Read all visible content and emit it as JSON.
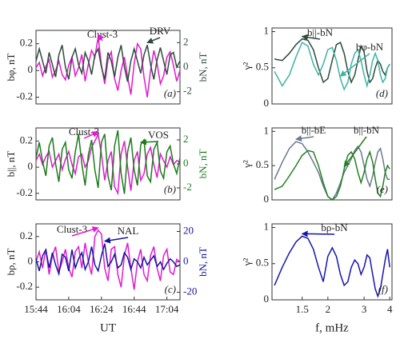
{
  "chart_data": [
    {
      "type": "line",
      "ylabel": "bφ, nT",
      "y2label": "bN, nT",
      "annotation": "(a)",
      "x": [
        "15:44",
        "15:46",
        "15:48",
        "15:50",
        "15:52",
        "15:54",
        "15:56",
        "15:58",
        "16:00",
        "16:02",
        "16:04",
        "16:06",
        "16:08",
        "16:10",
        "16:12",
        "16:14",
        "16:16",
        "16:18",
        "16:20",
        "16:22",
        "16:24",
        "16:26",
        "16:28",
        "16:30",
        "16:32",
        "16:34",
        "16:36",
        "16:38",
        "16:40",
        "16:42",
        "16:44",
        "16:46",
        "16:48",
        "16:50",
        "16:52",
        "16:54",
        "16:56",
        "16:58",
        "17:00",
        "17:02",
        "17:04",
        "17:06",
        "17:08",
        "17:10",
        "17:12"
      ],
      "ylim": [
        -0.25,
        0.3
      ],
      "yticks": [
        -0.2,
        0,
        0.2
      ],
      "y2lim": [
        -3,
        3
      ],
      "y2ticks": [
        -2,
        0,
        2
      ],
      "series": [
        {
          "name": "Clust-3",
          "color": "#e01ad0",
          "values": [
            0.02,
            0.06,
            -0.04,
            0.03,
            0.08,
            -0.05,
            0.0,
            0.07,
            -0.03,
            -0.07,
            0.04,
            0.1,
            -0.04,
            0.02,
            0.12,
            -0.08,
            0.05,
            0.15,
            0.1,
            0.25,
            0.04,
            -0.1,
            0.08,
            0.14,
            -0.06,
            -0.15,
            0.0,
            0.1,
            -0.05,
            -0.18,
            0.05,
            0.2,
            0.16,
            -0.05,
            -0.2,
            0.0,
            0.15,
            0.05,
            -0.1,
            -0.04,
            0.1,
            0.14,
            0.04,
            -0.08,
            0.0
          ]
        },
        {
          "name": "DRV",
          "color": "#2f4a3c",
          "axis": "y2",
          "values": [
            0.5,
            1.5,
            0.5,
            -0.5,
            1.2,
            0.2,
            -0.8,
            1.0,
            1.8,
            0.0,
            -1.0,
            0.8,
            1.5,
            0.2,
            -0.5,
            1.2,
            0.5,
            -0.6,
            1.0,
            1.5,
            0.0,
            -1.0,
            1.2,
            0.5,
            -0.8,
            0.8,
            1.8,
            0.0,
            -1.2,
            0.5,
            1.5,
            0.5,
            -0.5,
            1.0,
            1.8,
            0.2,
            -1.0,
            0.6,
            1.6,
            0.5,
            -0.6,
            1.0,
            1.2,
            0.0,
            0.5
          ]
        }
      ]
    },
    {
      "type": "line",
      "ylabel": "b||, nT",
      "y2label": "bN, nT",
      "annotation": "(b)",
      "x": [
        "15:44",
        "15:46",
        "15:48",
        "15:50",
        "15:52",
        "15:54",
        "15:56",
        "15:58",
        "16:00",
        "16:02",
        "16:04",
        "16:06",
        "16:08",
        "16:10",
        "16:12",
        "16:14",
        "16:16",
        "16:18",
        "16:20",
        "16:22",
        "16:24",
        "16:26",
        "16:28",
        "16:30",
        "16:32",
        "16:34",
        "16:36",
        "16:38",
        "16:40",
        "16:42",
        "16:44",
        "16:46",
        "16:48",
        "16:50",
        "16:52",
        "16:54",
        "16:56",
        "16:58",
        "17:00",
        "17:02",
        "17:04",
        "17:06",
        "17:08",
        "17:10",
        "17:12"
      ],
      "ylim": [
        -0.25,
        0.3
      ],
      "yticks": [
        -0.2,
        0,
        0.2
      ],
      "y2lim": [
        -3,
        3
      ],
      "y2ticks": [
        -2,
        0,
        2
      ],
      "series": [
        {
          "name": "Clust-3",
          "color": "#e01ad0",
          "values": [
            0.05,
            0.1,
            0.02,
            0.08,
            0.12,
            0.0,
            0.05,
            0.1,
            -0.02,
            0.06,
            0.12,
            0.02,
            -0.05,
            0.08,
            0.1,
            0.0,
            0.05,
            0.15,
            0.2,
            0.25,
            0.1,
            -0.1,
            0.05,
            0.12,
            -0.15,
            -0.2,
            0.1,
            0.2,
            0.0,
            -0.18,
            0.05,
            0.12,
            -0.1,
            -0.05,
            0.1,
            0.15,
            0.02,
            -0.08,
            0.1,
            0.05,
            0.0,
            0.08,
            0.02,
            0.05,
            0.04
          ]
        },
        {
          "name": "VOS",
          "color": "#1c7a1c",
          "axis": "y2",
          "values": [
            0.5,
            1.8,
            0.2,
            -1.0,
            1.5,
            2.2,
            0.0,
            -1.5,
            1.2,
            1.8,
            -0.5,
            -1.2,
            1.0,
            2.5,
            0.0,
            -1.8,
            0.8,
            2.0,
            -0.5,
            -2.0,
            1.8,
            2.5,
            -1.0,
            -2.2,
            1.5,
            2.8,
            -0.8,
            -2.5,
            1.0,
            2.2,
            -0.5,
            -1.8,
            1.6,
            2.0,
            -1.0,
            -1.5,
            1.2,
            1.8,
            -0.6,
            -1.2,
            1.0,
            1.5,
            0.0,
            -0.8,
            0.5
          ]
        }
      ]
    },
    {
      "type": "line",
      "ylabel": "bρ, nT",
      "y2label": "bN, nT",
      "annotation": "(c)",
      "xlabel": "UT",
      "x": [
        "15:44",
        "15:46",
        "15:48",
        "15:50",
        "15:52",
        "15:54",
        "15:56",
        "15:58",
        "16:00",
        "16:02",
        "16:04",
        "16:06",
        "16:08",
        "16:10",
        "16:12",
        "16:14",
        "16:16",
        "16:18",
        "16:20",
        "16:22",
        "16:24",
        "16:26",
        "16:28",
        "16:30",
        "16:32",
        "16:34",
        "16:36",
        "16:38",
        "16:40",
        "16:42",
        "16:44",
        "16:46",
        "16:48",
        "16:50",
        "16:52",
        "16:54",
        "16:56",
        "16:58",
        "17:00",
        "17:02",
        "17:04",
        "17:06",
        "17:08",
        "17:10",
        "17:12"
      ],
      "xticks": [
        "15:44",
        "16:04",
        "16:24",
        "16:44",
        "17:04"
      ],
      "ylim": [
        -0.3,
        0.3
      ],
      "yticks": [
        -0.2,
        0,
        0.2
      ],
      "y2lim": [
        -25,
        25
      ],
      "y2ticks": [
        -20,
        0,
        20
      ],
      "series": [
        {
          "name": "Clust-3",
          "color": "#e01ad0",
          "values": [
            0.0,
            0.08,
            -0.05,
            0.1,
            -0.1,
            0.05,
            0.12,
            -0.08,
            0.0,
            0.1,
            -0.05,
            -0.12,
            0.08,
            0.12,
            -0.05,
            0.15,
            0.0,
            -0.1,
            0.2,
            0.25,
            0.22,
            -0.05,
            -0.15,
            0.1,
            0.12,
            -0.1,
            -0.2,
            0.05,
            0.15,
            -0.05,
            -0.22,
            0.0,
            0.1,
            -0.1,
            -0.15,
            0.05,
            0.12,
            -0.05,
            -0.15,
            0.05,
            0.1,
            -0.08,
            -0.1,
            0.02,
            0.0
          ]
        },
        {
          "name": "NAL",
          "color": "#1414a0",
          "axis": "y2",
          "values": [
            2,
            -6,
            4,
            8,
            -4,
            6,
            -2,
            -8,
            5,
            3,
            -6,
            8,
            -4,
            2,
            6,
            -5,
            0,
            10,
            -2,
            -6,
            4,
            12,
            -3,
            0,
            5,
            -4,
            -2,
            6,
            3,
            -5,
            2,
            0,
            -4,
            3,
            -2,
            1,
            4,
            -3,
            0,
            -5,
            -1,
            2,
            0,
            -3,
            -2
          ]
        }
      ]
    },
    {
      "type": "line",
      "ylabel": "γ²",
      "annotation": "(d)",
      "xscale": "log",
      "x": [
        1.1,
        1.2,
        1.3,
        1.4,
        1.5,
        1.6,
        1.7,
        1.8,
        1.9,
        2.0,
        2.1,
        2.2,
        2.3,
        2.4,
        2.5,
        2.6,
        2.7,
        2.8,
        2.9,
        3.0,
        3.1,
        3.2,
        3.3,
        3.4,
        3.5,
        3.6,
        3.7,
        3.8,
        3.9,
        4.0
      ],
      "xlim": [
        1.07,
        4.1
      ],
      "ylim": [
        0,
        1.05
      ],
      "yticks": [
        0,
        0.5,
        1
      ],
      "series": [
        {
          "name": "b||-bN",
          "color": "#2f4a3c",
          "values": [
            0.62,
            0.6,
            0.7,
            0.82,
            0.9,
            0.88,
            0.75,
            0.5,
            0.3,
            0.35,
            0.6,
            0.82,
            0.85,
            0.7,
            0.45,
            0.3,
            0.4,
            0.6,
            0.8,
            0.72,
            0.45,
            0.3,
            0.35,
            0.5,
            0.6,
            0.55,
            0.45,
            0.4,
            0.5,
            0.55
          ]
        },
        {
          "name": "bφ-bN",
          "color": "#3cb4a4",
          "values": [
            0.45,
            0.25,
            0.4,
            0.65,
            0.85,
            0.8,
            0.55,
            0.4,
            0.55,
            0.75,
            0.78,
            0.6,
            0.35,
            0.2,
            0.3,
            0.55,
            0.7,
            0.75,
            0.6,
            0.4,
            0.25,
            0.4,
            0.6,
            0.7,
            0.6,
            0.4,
            0.3,
            0.35,
            0.5,
            0.55
          ]
        }
      ]
    },
    {
      "type": "line",
      "ylabel": "γ²",
      "annotation": "(e)",
      "xscale": "log",
      "x": [
        1.1,
        1.2,
        1.3,
        1.4,
        1.5,
        1.6,
        1.7,
        1.8,
        1.9,
        2.0,
        2.1,
        2.2,
        2.3,
        2.4,
        2.5,
        2.6,
        2.7,
        2.8,
        2.9,
        3.0,
        3.1,
        3.2,
        3.3,
        3.4,
        3.5,
        3.6,
        3.7,
        3.8,
        3.9,
        4.0
      ],
      "xlim": [
        1.07,
        4.1
      ],
      "ylim": [
        0,
        1.05
      ],
      "yticks": [
        0,
        0.5,
        1
      ],
      "series": [
        {
          "name": "b||-bE",
          "color": "#6a7890",
          "values": [
            0.3,
            0.55,
            0.75,
            0.85,
            0.82,
            0.7,
            0.55,
            0.4,
            0.2,
            0.05,
            0.0,
            0.1,
            0.25,
            0.4,
            0.5,
            0.6,
            0.72,
            0.78,
            0.7,
            0.5,
            0.3,
            0.2,
            0.35,
            0.55,
            0.7,
            0.75,
            0.6,
            0.4,
            0.3,
            0.3
          ]
        },
        {
          "name": "b||-bN",
          "color": "#208020",
          "values": [
            0.15,
            0.2,
            0.35,
            0.5,
            0.65,
            0.72,
            0.7,
            0.5,
            0.25,
            0.05,
            0.0,
            0.05,
            0.2,
            0.45,
            0.65,
            0.7,
            0.6,
            0.4,
            0.25,
            0.4,
            0.6,
            0.7,
            0.55,
            0.3,
            0.1,
            0.05,
            0.2,
            0.4,
            0.5,
            0.45
          ]
        }
      ]
    },
    {
      "type": "line",
      "ylabel": "γ²",
      "annotation": "(f)",
      "xscale": "log",
      "xlabel": "f, mHz",
      "x": [
        1.1,
        1.2,
        1.3,
        1.4,
        1.5,
        1.6,
        1.7,
        1.8,
        1.9,
        2.0,
        2.1,
        2.2,
        2.3,
        2.4,
        2.5,
        2.6,
        2.7,
        2.8,
        2.9,
        3.0,
        3.1,
        3.2,
        3.3,
        3.4,
        3.5,
        3.6,
        3.7,
        3.8,
        3.9,
        4.0
      ],
      "xlim": [
        1.07,
        4.1
      ],
      "xticks": [
        1.5,
        2,
        3,
        4
      ],
      "ylim": [
        0,
        1.05
      ],
      "yticks": [
        0,
        0.5,
        1
      ],
      "series": [
        {
          "name": "bρ-bN",
          "color": "#1515b0",
          "values": [
            0.2,
            0.45,
            0.65,
            0.8,
            0.88,
            0.85,
            0.7,
            0.45,
            0.25,
            0.6,
            0.72,
            0.6,
            0.35,
            0.2,
            0.25,
            0.45,
            0.55,
            0.5,
            0.35,
            0.45,
            0.62,
            0.58,
            0.35,
            0.15,
            0.05,
            0.15,
            0.35,
            0.55,
            0.7,
            0.45
          ]
        }
      ]
    }
  ]
}
